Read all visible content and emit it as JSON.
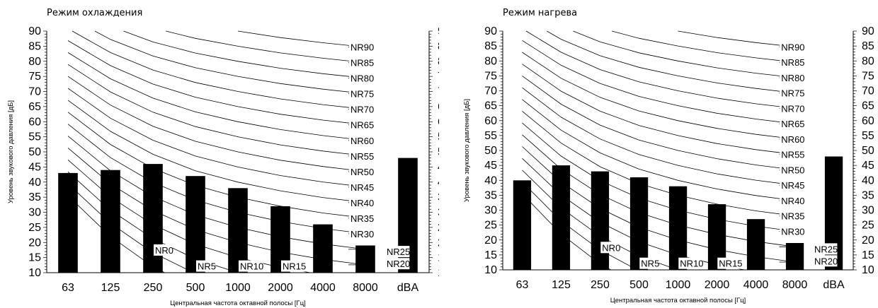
{
  "charts": [
    {
      "title": "Режим охлаждения",
      "ylabel": "Уровень звукового давления [дБ]",
      "xlabel": "Центральная частота октавной полосы [Гц]"
    },
    {
      "title": "Режим нагрева",
      "ylabel": "Уровень звукового давления [дБ]",
      "xlabel": "Центральная частота октавной полосы [Гц]"
    }
  ],
  "chart_data": [
    {
      "type": "bar",
      "title": "Режим охлаждения",
      "xlabel": "Центральная частота октавной полосы [Гц]",
      "ylabel": "Уровень звукового давления [дБ]",
      "categories": [
        "63",
        "125",
        "250",
        "500",
        "1000",
        "2000",
        "4000",
        "8000",
        "dBA"
      ],
      "values": [
        43,
        44,
        46,
        42,
        38,
        32,
        26,
        19,
        48
      ],
      "ylim": [
        10,
        90
      ],
      "yticks": [
        10,
        15,
        20,
        25,
        30,
        35,
        40,
        45,
        50,
        55,
        60,
        65,
        70,
        75,
        80,
        85,
        90
      ],
      "secondary_y_axis": true,
      "bar_color": "#000000",
      "nr_curves": {
        "labels": [
          "NR0",
          "NR5",
          "NR10",
          "NR15",
          "NR20",
          "NR25",
          "NR30",
          "NR35",
          "NR40",
          "NR45",
          "NR50",
          "NR55",
          "NR60",
          "NR65",
          "NR70",
          "NR75",
          "NR80",
          "NR85",
          "NR90"
        ],
        "ratings": [
          0,
          5,
          10,
          15,
          20,
          25,
          30,
          35,
          40,
          45,
          50,
          55,
          60,
          65,
          70,
          75,
          80,
          85,
          90
        ]
      }
    },
    {
      "type": "bar",
      "title": "Режим нагрева",
      "xlabel": "Центральная частота октавной полосы [Гц]",
      "ylabel": "Уровень звукового давления [дБ]",
      "categories": [
        "63",
        "125",
        "250",
        "500",
        "1000",
        "2000",
        "4000",
        "8000",
        "dBA"
      ],
      "values": [
        40,
        45,
        43,
        41,
        38,
        32,
        27,
        19,
        48
      ],
      "ylim": [
        10,
        90
      ],
      "yticks": [
        10,
        15,
        20,
        25,
        30,
        35,
        40,
        45,
        50,
        55,
        60,
        65,
        70,
        75,
        80,
        85,
        90
      ],
      "secondary_y_axis": true,
      "bar_color": "#000000",
      "nr_curves": {
        "labels": [
          "NR0",
          "NR5",
          "NR10",
          "NR15",
          "NR20",
          "NR25",
          "NR30",
          "NR35",
          "NR40",
          "NR45",
          "NR50",
          "NR55",
          "NR60",
          "NR65",
          "NR70",
          "NR75",
          "NR80",
          "NR85",
          "NR90"
        ],
        "ratings": [
          0,
          5,
          10,
          15,
          20,
          25,
          30,
          35,
          40,
          45,
          50,
          55,
          60,
          65,
          70,
          75,
          80,
          85,
          90
        ]
      }
    }
  ]
}
